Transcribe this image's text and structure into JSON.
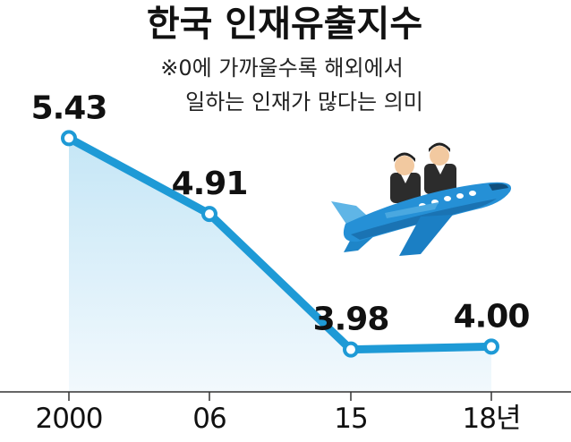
{
  "chart_data": {
    "type": "line",
    "title": "한국 인재유출지수",
    "note_lines": [
      "※0에 가까울수록 해외에서",
      "일하는 인재가 많다는 의미"
    ],
    "categories": [
      "2000",
      "06",
      "15",
      "18년"
    ],
    "series": [
      {
        "values": [
          5.43,
          4.91,
          3.98,
          4.0
        ]
      }
    ],
    "value_labels": [
      "5.43",
      "4.91",
      "3.98",
      "4.00"
    ],
    "ylim": [
      3.8,
      5.5
    ],
    "grid": false,
    "legend": "none",
    "colors": {
      "line": "#1e9ad6",
      "area_top": "#c5e6f6",
      "area_bottom": "#f2f9fd",
      "marker_fill": "#ffffff",
      "axis": "#333333"
    }
  }
}
